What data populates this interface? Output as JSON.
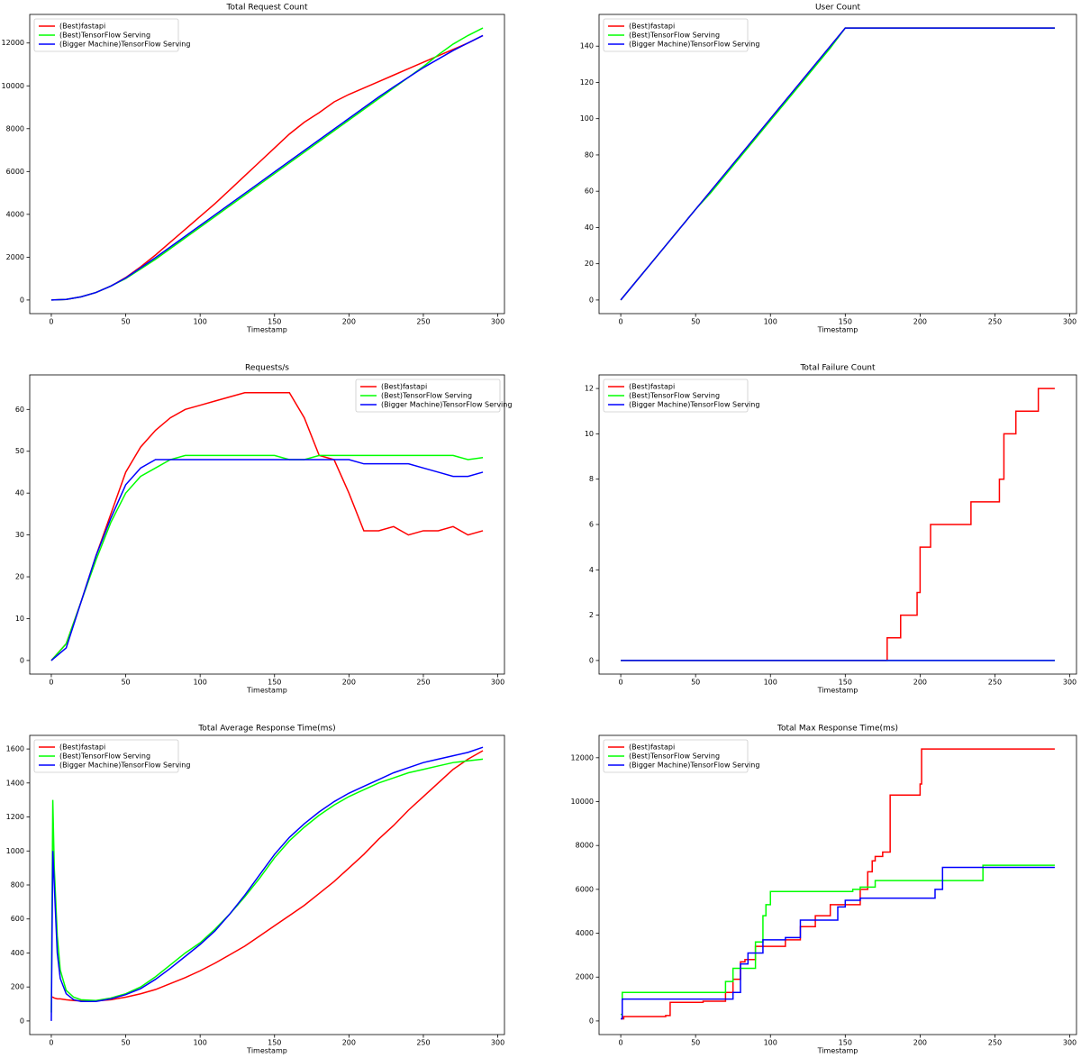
{
  "chart_data": [
    {
      "type": "line",
      "title": "Total Request Count",
      "x_label": "Timestamp",
      "legend": "upper left",
      "xlim": [
        -14.5,
        304.5
      ],
      "xticks": [
        0,
        50,
        100,
        150,
        200,
        250,
        300
      ],
      "ylim": [
        -635,
        13335
      ],
      "yticks": [
        0,
        2000,
        4000,
        6000,
        8000,
        10000,
        12000
      ],
      "x": [
        0,
        10,
        20,
        30,
        40,
        50,
        60,
        70,
        80,
        90,
        100,
        110,
        120,
        130,
        140,
        150,
        160,
        170,
        180,
        190,
        200,
        210,
        220,
        230,
        240,
        250,
        260,
        270,
        280,
        290
      ],
      "series": [
        {
          "name": "(Best)fastapi",
          "color": "#ff0000",
          "values": [
            0,
            30,
            150,
            350,
            650,
            1050,
            1550,
            2100,
            2700,
            3300,
            3900,
            4500,
            5150,
            5800,
            6450,
            7100,
            7750,
            8300,
            8750,
            9250,
            9600,
            9900,
            10200,
            10500,
            10800,
            11100,
            11400,
            11700,
            12000,
            12350
          ]
        },
        {
          "name": "(Best)TensorFlow Serving",
          "color": "#00ff00",
          "values": [
            0,
            30,
            150,
            350,
            650,
            1000,
            1450,
            1900,
            2400,
            2900,
            3400,
            3900,
            4400,
            4900,
            5400,
            5900,
            6400,
            6900,
            7400,
            7900,
            8400,
            8900,
            9400,
            9900,
            10400,
            10900,
            11450,
            11950,
            12350,
            12700
          ]
        },
        {
          "name": "(Bigger Machine)TensorFlow Serving",
          "color": "#0000ff",
          "values": [
            0,
            30,
            150,
            350,
            650,
            1030,
            1500,
            1980,
            2480,
            2980,
            3480,
            3980,
            4480,
            4980,
            5480,
            5980,
            6480,
            6980,
            7480,
            7980,
            8480,
            8980,
            9480,
            9950,
            10400,
            10850,
            11250,
            11650,
            12000,
            12350
          ]
        }
      ]
    },
    {
      "type": "line",
      "title": "User Count",
      "x_label": "Timestamp",
      "legend": "upper left",
      "xlim": [
        -14.5,
        304.5
      ],
      "xticks": [
        0,
        50,
        100,
        150,
        200,
        250,
        300
      ],
      "ylim": [
        -7.5,
        157.5
      ],
      "yticks": [
        0,
        20,
        40,
        60,
        80,
        100,
        120,
        140
      ],
      "x": [
        0,
        10,
        20,
        30,
        40,
        50,
        60,
        70,
        80,
        90,
        100,
        110,
        120,
        130,
        140,
        150,
        160,
        170,
        180,
        190,
        200,
        210,
        220,
        230,
        240,
        250,
        260,
        270,
        280,
        290
      ],
      "series": [
        {
          "name": "(Best)fastapi",
          "color": "#ff0000",
          "values": [
            0,
            10,
            20,
            30,
            40,
            50,
            60,
            70,
            80,
            90,
            100,
            110,
            120,
            130,
            140,
            150,
            150,
            150,
            150,
            150,
            150,
            150,
            150,
            150,
            150,
            150,
            150,
            150,
            150,
            150
          ]
        },
        {
          "name": "(Best)TensorFlow Serving",
          "color": "#00ff00",
          "values": [
            0,
            10,
            20,
            30,
            40,
            50,
            59,
            69,
            79,
            89,
            99,
            109,
            119,
            129,
            139,
            150,
            150,
            150,
            150,
            150,
            150,
            150,
            150,
            150,
            150,
            150,
            150,
            150,
            150,
            150
          ]
        },
        {
          "name": "(Bigger Machine)TensorFlow Serving",
          "color": "#0000ff",
          "values": [
            0,
            10,
            20,
            30,
            40,
            50,
            60,
            70,
            80,
            90,
            100,
            110,
            120,
            130,
            140,
            150,
            150,
            150,
            150,
            150,
            150,
            150,
            150,
            150,
            150,
            150,
            150,
            150,
            150,
            150
          ]
        }
      ]
    },
    {
      "type": "line",
      "title": "Requests/s",
      "x_label": "Timestamp",
      "legend": "upper right",
      "xlim": [
        -14.5,
        304.5
      ],
      "xticks": [
        0,
        50,
        100,
        150,
        200,
        250,
        300
      ],
      "ylim": [
        -3.25,
        68.25
      ],
      "yticks": [
        0,
        10,
        20,
        30,
        40,
        50,
        60
      ],
      "x": [
        0,
        10,
        20,
        30,
        40,
        50,
        60,
        70,
        80,
        90,
        100,
        110,
        120,
        130,
        140,
        150,
        160,
        170,
        180,
        190,
        200,
        210,
        220,
        230,
        240,
        250,
        260,
        270,
        280,
        290
      ],
      "series": [
        {
          "name": "(Best)fastapi",
          "color": "#ff0000",
          "values": [
            0,
            4,
            14,
            25,
            35,
            45,
            51,
            55,
            58,
            60,
            61,
            62,
            63,
            64,
            64,
            64,
            64,
            58,
            49,
            48,
            40,
            31,
            31,
            32,
            30,
            31,
            31,
            32,
            30,
            31
          ]
        },
        {
          "name": "(Best)TensorFlow Serving",
          "color": "#00ff00",
          "values": [
            0,
            4,
            14,
            24,
            33,
            40,
            44,
            46,
            48,
            49,
            49,
            49,
            49,
            49,
            49,
            49,
            48,
            48,
            49,
            49,
            49,
            49,
            49,
            49,
            49,
            49,
            49,
            49,
            48,
            48.5
          ]
        },
        {
          "name": "(Bigger Machine)TensorFlow Serving",
          "color": "#0000ff",
          "values": [
            0,
            3,
            14,
            25,
            34,
            42,
            46,
            48,
            48,
            48,
            48,
            48,
            48,
            48,
            48,
            48,
            48,
            48,
            48,
            48,
            48,
            47,
            47,
            47,
            47,
            46,
            45,
            44,
            44,
            45
          ]
        }
      ]
    },
    {
      "type": "line",
      "title": "Total Failure Count",
      "x_label": "Timestamp",
      "legend": "upper left",
      "drawstyle": "steps-post",
      "xlim": [
        -14.5,
        304.5
      ],
      "xticks": [
        0,
        50,
        100,
        150,
        200,
        250,
        300
      ],
      "ylim": [
        -0.6,
        12.6
      ],
      "yticks": [
        0,
        2,
        4,
        6,
        8,
        10,
        12
      ],
      "x": [
        0,
        178,
        187,
        198,
        200,
        207,
        234,
        253,
        256,
        264,
        279,
        290
      ],
      "series": [
        {
          "name": "(Best)fastapi",
          "color": "#ff0000",
          "values": [
            0,
            1,
            2,
            3,
            5,
            6,
            7,
            8,
            10,
            11,
            12,
            12
          ]
        },
        {
          "name": "(Best)TensorFlow Serving",
          "color": "#00ff00",
          "values": [
            0,
            0,
            0,
            0,
            0,
            0,
            0,
            0,
            0,
            0,
            0,
            0
          ]
        },
        {
          "name": "(Bigger Machine)TensorFlow Serving",
          "color": "#0000ff",
          "values": [
            0,
            0,
            0,
            0,
            0,
            0,
            0,
            0,
            0,
            0,
            0,
            0
          ]
        }
      ]
    },
    {
      "type": "line",
      "title": "Total Average Response Time(ms)",
      "x_label": "Timestamp",
      "legend": "upper left",
      "xlim": [
        -14.5,
        304.5
      ],
      "xticks": [
        0,
        50,
        100,
        150,
        200,
        250,
        300
      ],
      "ylim": [
        -80,
        1680
      ],
      "yticks": [
        0,
        200,
        400,
        600,
        800,
        1000,
        1200,
        1400,
        1600
      ],
      "x": [
        0,
        1,
        2,
        4,
        6,
        10,
        15,
        20,
        30,
        40,
        50,
        60,
        70,
        80,
        90,
        100,
        110,
        120,
        130,
        140,
        150,
        160,
        170,
        180,
        190,
        200,
        210,
        220,
        230,
        240,
        250,
        260,
        270,
        280,
        290
      ],
      "series": [
        {
          "name": "(Best)fastapi",
          "color": "#ff0000",
          "values": [
            140,
            140,
            135,
            130,
            130,
            125,
            120,
            118,
            118,
            125,
            140,
            160,
            185,
            220,
            255,
            295,
            340,
            390,
            440,
            500,
            560,
            620,
            680,
            750,
            820,
            900,
            980,
            1070,
            1150,
            1240,
            1320,
            1400,
            1480,
            1540,
            1590
          ]
        },
        {
          "name": "(Best)TensorFlow Serving",
          "color": "#00ff00",
          "values": [
            50,
            1300,
            900,
            500,
            300,
            180,
            140,
            125,
            120,
            135,
            160,
            200,
            260,
            330,
            400,
            460,
            540,
            630,
            730,
            840,
            960,
            1060,
            1140,
            1210,
            1270,
            1320,
            1360,
            1400,
            1430,
            1460,
            1480,
            1500,
            1520,
            1530,
            1540
          ]
        },
        {
          "name": "(Bigger Machine)TensorFlow Serving",
          "color": "#0000ff",
          "values": [
            0,
            1000,
            800,
            400,
            250,
            160,
            125,
            115,
            115,
            130,
            155,
            190,
            245,
            310,
            380,
            450,
            530,
            630,
            740,
            860,
            980,
            1080,
            1160,
            1230,
            1290,
            1340,
            1380,
            1420,
            1460,
            1490,
            1520,
            1540,
            1560,
            1580,
            1610
          ]
        }
      ]
    },
    {
      "type": "line",
      "title": "Total Max Response Time(ms)",
      "x_label": "Timestamp",
      "legend": "upper left",
      "drawstyle": "steps-post",
      "xlim": [
        -14.5,
        304.5
      ],
      "xticks": [
        0,
        50,
        100,
        150,
        200,
        250,
        300
      ],
      "ylim": [
        -620,
        13020
      ],
      "yticks": [
        0,
        2000,
        4000,
        6000,
        8000,
        10000,
        12000
      ],
      "series": [
        {
          "name": "(Best)fastapi",
          "color": "#ff0000",
          "x": [
            0,
            2,
            30,
            33,
            50,
            55,
            70,
            75,
            80,
            83,
            90,
            100,
            110,
            120,
            130,
            140,
            150,
            160,
            165,
            168,
            170,
            175,
            180,
            185,
            200,
            201,
            290
          ],
          "values": [
            100,
            200,
            250,
            850,
            850,
            900,
            1300,
            1900,
            2700,
            2800,
            3400,
            3400,
            3700,
            4300,
            4800,
            5300,
            5300,
            6000,
            6800,
            7300,
            7500,
            7700,
            10300,
            10300,
            10800,
            12400,
            12400
          ]
        },
        {
          "name": "(Best)TensorFlow Serving",
          "color": "#00ff00",
          "x": [
            0,
            1,
            65,
            70,
            75,
            80,
            90,
            95,
            97,
            100,
            150,
            155,
            160,
            170,
            240,
            242,
            290
          ],
          "values": [
            300,
            1300,
            1300,
            1800,
            2400,
            2400,
            3600,
            4800,
            5300,
            5900,
            5900,
            6000,
            6100,
            6400,
            6400,
            7100,
            7100
          ]
        },
        {
          "name": "(Bigger Machine)TensorFlow Serving",
          "color": "#0000ff",
          "x": [
            0,
            1,
            70,
            75,
            80,
            85,
            95,
            110,
            120,
            140,
            145,
            150,
            160,
            200,
            210,
            215,
            290
          ],
          "values": [
            100,
            1000,
            1000,
            1300,
            2600,
            3100,
            3700,
            3800,
            4600,
            4600,
            5200,
            5500,
            5600,
            5600,
            6000,
            7000,
            7000
          ]
        }
      ]
    }
  ]
}
